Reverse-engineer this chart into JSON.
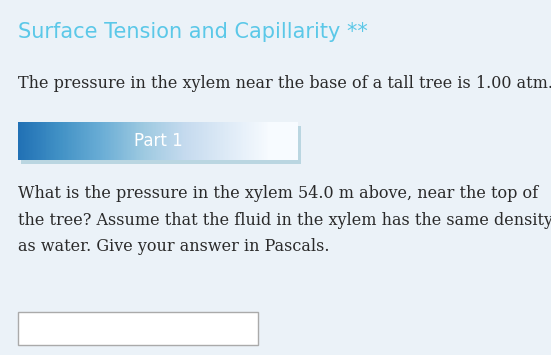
{
  "title": "Surface Tension and Capillarity **",
  "title_color": "#5BC8E8",
  "title_fontsize": 15,
  "background_color": "#EBF2F8",
  "intro_text": "The pressure in the xylem near the base of a tall tree is 1.00 atm.",
  "part_label": "Part 1",
  "part_bg_color_left": "#7DD6EF",
  "part_bg_color_right": "#42B4DC",
  "part_text_color": "#FFFFFF",
  "part_fontsize": 12,
  "question_line1": "What is the pressure in the xylem 54.0 m above, near the top of",
  "question_line2": "the tree? Assume that the fluid in the xylem has the same density",
  "question_line3": "as water. Give your answer in Pascals.",
  "body_text_color": "#2A2A2A",
  "body_fontsize": 11.5,
  "input_box_color": "#FFFFFF",
  "input_box_border": "#AAAAAA",
  "fig_width": 5.51,
  "fig_height": 3.55,
  "dpi": 100
}
